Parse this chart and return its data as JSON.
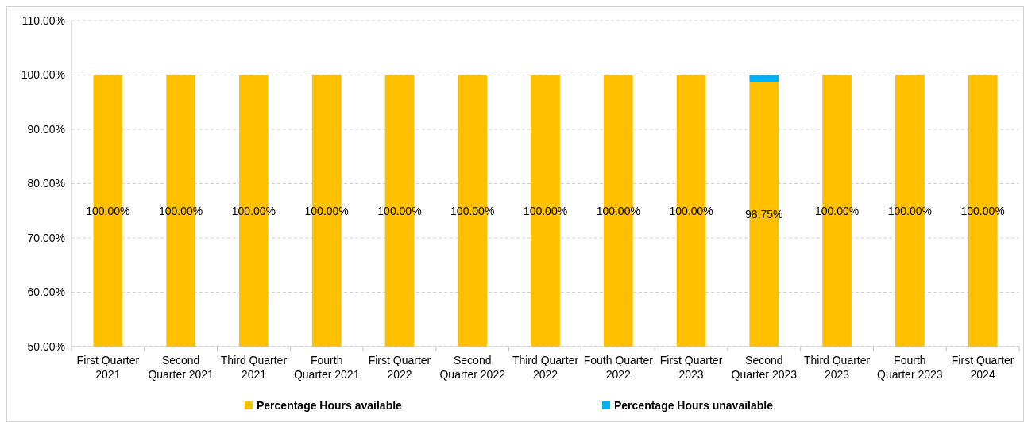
{
  "chart_data": {
    "type": "bar",
    "categories": [
      "First Quarter 2021",
      "Second Quarter 2021",
      "Third Quarter 2021",
      "Fourth Quarter 2021",
      "First Quarter 2022",
      "Second Quarter 2022",
      "Third Quarter 2022",
      "Fouth Quarter 2022",
      "First Quarter 2023",
      "Second Quarter 2023",
      "Third Quarter 2023",
      "Fourth Quarter 2023",
      "First Quarter 2024"
    ],
    "series": [
      {
        "name": "Percentage Hours available",
        "color": "#ffc000",
        "values": [
          100,
          100,
          100,
          100,
          100,
          100,
          100,
          100,
          100,
          98.75,
          100,
          100,
          100
        ],
        "value_labels": [
          "100.00%",
          "100.00%",
          "100.00%",
          "100.00%",
          "100.00%",
          "100.00%",
          "100.00%",
          "100.00%",
          "100.00%",
          "98.75%",
          "100.00%",
          "100.00%",
          "100.00%"
        ]
      },
      {
        "name": "Percentage Hours unavailable",
        "color": "#00b0f0",
        "values": [
          null,
          null,
          null,
          null,
          null,
          null,
          null,
          null,
          null,
          1.25,
          null,
          null,
          null
        ],
        "base": [
          null,
          null,
          null,
          null,
          null,
          null,
          null,
          null,
          null,
          98.75,
          null,
          null,
          null
        ]
      }
    ],
    "ylim": [
      50,
      110
    ],
    "yticks": [
      {
        "value": 50,
        "label": "50.00%"
      },
      {
        "value": 60,
        "label": "60.00%"
      },
      {
        "value": 70,
        "label": "70.00%"
      },
      {
        "value": 80,
        "label": "80.00%"
      },
      {
        "value": 90,
        "label": "90.00%"
      },
      {
        "value": 100,
        "label": "100.00%"
      },
      {
        "value": 110,
        "label": "110.00%"
      }
    ],
    "grid": "y",
    "legend": "bottom"
  }
}
